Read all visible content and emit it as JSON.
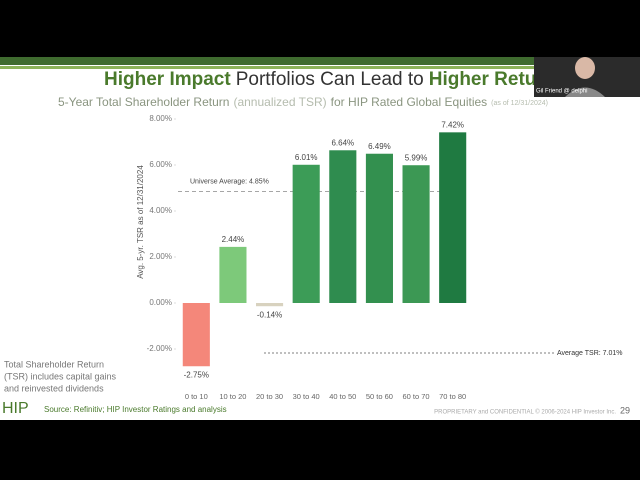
{
  "chart_data": {
    "type": "bar",
    "title_parts": [
      "Higher Impact",
      "Portfolios Can Lead to",
      "Higher Returns"
    ],
    "subtitle_parts": [
      "5-Year Total Shareholder Return",
      "(annualized TSR)",
      "for HIP Rated Global Equities",
      "(as of 12/31/2024)"
    ],
    "y_label": "Avg. 5-yr. TSR as of 12/31/2024",
    "categories": [
      "0 to 10",
      "10 to 20",
      "20 to 30",
      "30 to 40",
      "40 to 50",
      "50 to 60",
      "60 to 70",
      "70 to 80"
    ],
    "values": [
      -2.75,
      2.44,
      -0.14,
      6.01,
      6.64,
      6.49,
      5.99,
      7.42
    ],
    "value_labels": [
      "-2.75%",
      "2.44%",
      "-0.14%",
      "6.01%",
      "6.64%",
      "6.49%",
      "5.99%",
      "7.42%"
    ],
    "colors": [
      "#f4877a",
      "#7dc97a",
      "#d8d2bf",
      "#3c9c57",
      "#2f8c4f",
      "#33904f",
      "#3c9854",
      "#1f7a41"
    ],
    "ylim": [
      -3,
      8
    ],
    "yticks": [
      {
        "value": -2,
        "label": "-2.00%"
      },
      {
        "value": 0,
        "label": "0.00%"
      },
      {
        "value": 2,
        "label": "2.00%"
      },
      {
        "value": 4,
        "label": "4.00%"
      },
      {
        "value": 6,
        "label": "6.00%"
      },
      {
        "value": 8,
        "label": "8.00%"
      }
    ],
    "reference_lines": [
      {
        "value": 4.85,
        "label": "Universe Average: 4.85%"
      }
    ],
    "annotation": "Average TSR: 7.01%"
  },
  "footer": {
    "note": [
      "Total Shareholder Return",
      "(TSR) includes capital gains",
      "and reinvested dividends"
    ],
    "logo": "HIP",
    "source": "Source: Refinitiv; HIP Investor Ratings and analysis",
    "confidential": "PROPRIETARY and CONFIDENTIAL © 2006-2024 HIP Investor Inc.",
    "page": "29"
  },
  "overlay": {
    "participant": "Gil Friend @ delphi"
  }
}
